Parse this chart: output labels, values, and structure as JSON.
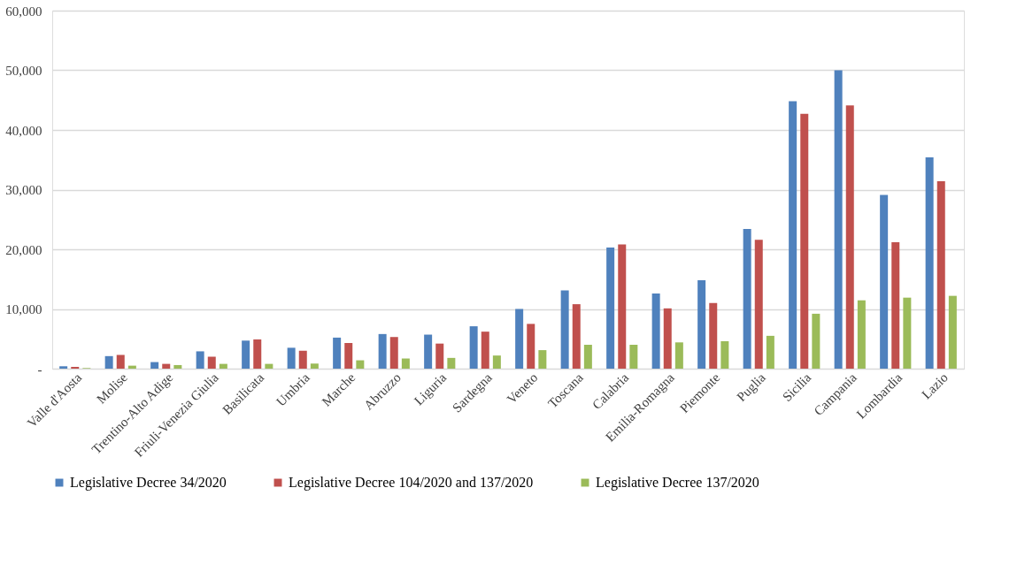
{
  "chart_data": {
    "type": "bar",
    "categories": [
      "Valle d'Aosta",
      "Molise",
      "Trentino-Alto Adige",
      "Friuli-Venezia Giulia",
      "Basilicata",
      "Umbria",
      "Marche",
      "Abruzzo",
      "Liguria",
      "Sardegna",
      "Veneto",
      "Toscana",
      "Calabria",
      "Emilia-Romagna",
      "Piemonte",
      "Puglia",
      "Sicilia",
      "Campania",
      "Lombardia",
      "Lazio"
    ],
    "series": [
      {
        "name": "Legislative Decree 34/2020",
        "color": "#4f81bd",
        "values": [
          400,
          2100,
          1100,
          2900,
          4700,
          3500,
          5200,
          5800,
          5700,
          7100,
          10000,
          13100,
          20300,
          12600,
          14800,
          23400,
          44800,
          50000,
          29100,
          35400
        ]
      },
      {
        "name": "Legislative Decree 104/2020 and 137/2020",
        "color": "#c0504d",
        "values": [
          300,
          2300,
          800,
          2000,
          4900,
          3000,
          4300,
          5300,
          4200,
          6200,
          7500,
          10800,
          20800,
          10100,
          11000,
          21600,
          42700,
          44100,
          21200,
          31400
        ]
      },
      {
        "name": "Legislative Decree 137/2020",
        "color": "#9bbb59",
        "values": [
          100,
          500,
          600,
          800,
          800,
          850,
          1400,
          1700,
          1800,
          2200,
          3100,
          4000,
          4000,
          4400,
          4600,
          5500,
          9200,
          11450,
          11900,
          12200
        ]
      }
    ],
    "ylim": [
      0,
      60000
    ],
    "yticks": [
      {
        "value": 0,
        "label": "-"
      },
      {
        "value": 10000,
        "label": "10,000"
      },
      {
        "value": 20000,
        "label": "20,000"
      },
      {
        "value": 30000,
        "label": "30,000"
      },
      {
        "value": 40000,
        "label": "40,000"
      },
      {
        "value": 50000,
        "label": "50,000"
      },
      {
        "value": 60000,
        "label": "60,000"
      }
    ],
    "grid": "y",
    "legend": "bottom"
  }
}
